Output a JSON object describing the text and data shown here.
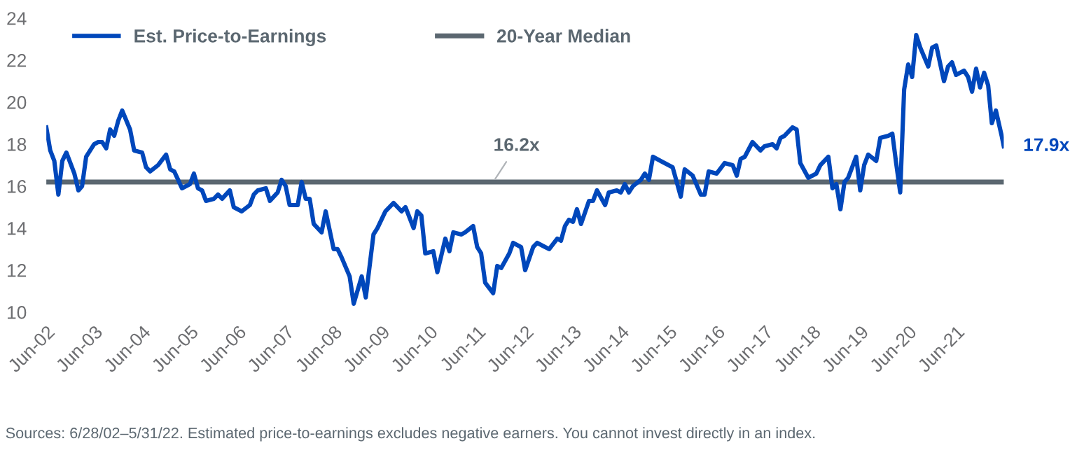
{
  "chart_data": {
    "type": "line",
    "series": [
      {
        "name": "Est. Price-to-Earnings",
        "color": "#0047bb",
        "x": [
          "2002-06",
          "2002-07",
          "2002-08",
          "2002-09",
          "2002-10",
          "2002-11",
          "2003-01",
          "2003-02",
          "2003-03",
          "2003-04",
          "2003-06",
          "2003-07",
          "2003-08",
          "2003-09",
          "2003-10",
          "2003-11",
          "2003-12",
          "2004-01",
          "2004-03",
          "2004-04",
          "2004-06",
          "2004-07",
          "2004-08",
          "2004-10",
          "2004-12",
          "2005-01",
          "2005-02",
          "2005-04",
          "2005-06",
          "2005-07",
          "2005-08",
          "2005-09",
          "2005-10",
          "2005-12",
          "2006-01",
          "2006-02",
          "2006-04",
          "2006-05",
          "2006-07",
          "2006-09",
          "2006-10",
          "2006-11",
          "2007-01",
          "2007-02",
          "2007-04",
          "2007-05",
          "2007-06",
          "2007-07",
          "2007-09",
          "2007-10",
          "2007-11",
          "2007-12",
          "2008-01",
          "2008-03",
          "2008-04",
          "2008-06",
          "2008-07",
          "2008-08",
          "2008-10",
          "2008-11",
          "2009-01",
          "2009-02",
          "2009-04",
          "2009-05",
          "2009-07",
          "2009-09",
          "2009-11",
          "2009-12",
          "2010-02",
          "2010-03",
          "2010-04",
          "2010-05",
          "2010-07",
          "2010-08",
          "2010-10",
          "2010-11",
          "2010-12",
          "2011-02",
          "2011-03",
          "2011-05",
          "2011-06",
          "2011-07",
          "2011-08",
          "2011-10",
          "2011-11",
          "2011-12",
          "2012-02",
          "2012-03",
          "2012-05",
          "2012-06",
          "2012-08",
          "2012-09",
          "2012-11",
          "2012-12",
          "2013-02",
          "2013-03",
          "2013-04",
          "2013-05",
          "2013-06",
          "2013-07",
          "2013-08",
          "2013-10",
          "2013-11",
          "2013-12",
          "2014-02",
          "2014-03",
          "2014-05",
          "2014-06",
          "2014-07",
          "2014-08",
          "2014-09",
          "2014-11",
          "2014-12",
          "2015-01",
          "2015-02",
          "2015-04",
          "2015-07",
          "2015-09",
          "2015-10",
          "2015-12",
          "2016-02",
          "2016-03",
          "2016-04",
          "2016-06",
          "2016-08",
          "2016-10",
          "2016-11",
          "2016-12",
          "2017-01",
          "2017-03",
          "2017-05",
          "2017-06",
          "2017-08",
          "2017-09",
          "2017-10",
          "2017-11",
          "2018-01",
          "2018-02",
          "2018-03",
          "2018-05",
          "2018-07",
          "2018-08",
          "2018-10",
          "2018-11",
          "2018-12",
          "2019-01",
          "2019-02",
          "2019-03",
          "2019-05",
          "2019-06",
          "2019-07",
          "2019-08",
          "2019-10",
          "2019-11",
          "2020-01",
          "2020-02",
          "2020-03",
          "2020-04",
          "2020-05",
          "2020-06",
          "2020-07",
          "2020-08",
          "2020-09",
          "2020-11",
          "2020-12",
          "2021-01",
          "2021-03",
          "2021-04",
          "2021-05",
          "2021-06",
          "2021-08",
          "2021-09",
          "2021-10",
          "2021-11",
          "2021-12",
          "2022-01",
          "2022-02",
          "2022-03",
          "2022-04",
          "2022-05-15",
          "2022-05-31"
        ],
        "values": [
          18.8,
          17.7,
          17.2,
          15.6,
          17.2,
          17.6,
          16.6,
          15.8,
          16.0,
          17.4,
          18.0,
          18.1,
          18.1,
          17.8,
          18.7,
          18.4,
          19.1,
          19.6,
          18.7,
          17.7,
          17.6,
          16.9,
          16.7,
          17.0,
          17.5,
          16.8,
          16.7,
          15.9,
          16.1,
          16.6,
          15.9,
          15.8,
          15.3,
          15.4,
          15.6,
          15.4,
          15.8,
          15.0,
          14.8,
          15.1,
          15.6,
          15.8,
          15.9,
          15.3,
          15.7,
          16.3,
          16.0,
          15.1,
          15.1,
          16.2,
          15.4,
          15.4,
          14.2,
          13.8,
          14.8,
          13.0,
          13.0,
          12.6,
          11.7,
          10.4,
          11.7,
          10.7,
          13.7,
          14.0,
          14.8,
          15.2,
          14.8,
          15.0,
          14.0,
          14.8,
          14.6,
          12.8,
          12.9,
          11.9,
          13.5,
          12.9,
          13.8,
          13.7,
          13.8,
          14.1,
          13.1,
          12.8,
          11.4,
          10.9,
          12.2,
          12.1,
          12.8,
          13.3,
          13.1,
          12.0,
          13.1,
          13.3,
          13.1,
          13.0,
          13.5,
          13.4,
          14.1,
          14.4,
          14.3,
          14.9,
          14.2,
          15.3,
          15.3,
          15.8,
          15.1,
          15.7,
          15.8,
          15.7,
          16.1,
          15.7,
          16.0,
          16.3,
          16.6,
          16.3,
          17.4,
          17.2,
          16.9,
          15.5,
          16.8,
          16.5,
          15.6,
          15.6,
          16.7,
          16.6,
          17.1,
          17.0,
          16.5,
          17.3,
          17.4,
          18.1,
          17.7,
          17.9,
          18.0,
          17.8,
          18.3,
          18.4,
          18.8,
          18.7,
          17.1,
          16.4,
          16.6,
          17.0,
          17.4,
          15.9,
          16.1,
          14.9,
          16.2,
          16.4,
          17.4,
          15.8,
          17.0,
          17.5,
          17.2,
          18.3,
          18.4,
          18.5,
          17.1,
          15.7,
          20.6,
          21.8,
          21.2,
          23.2,
          22.6,
          21.7,
          22.6,
          22.7,
          21.0,
          21.7,
          21.9,
          21.3,
          21.5,
          21.2,
          20.5,
          21.6,
          20.7,
          21.4,
          20.8,
          19.0,
          19.6,
          18.4,
          17.9
        ]
      },
      {
        "name": "20-Year Median",
        "color": "#5b6770",
        "x": [
          "2002-06",
          "2022-05-31"
        ],
        "values": [
          16.2,
          16.2
        ]
      }
    ],
    "xlim": [
      "2002-06",
      "2022-05-31"
    ],
    "xticks": [
      {
        "value": "2002-06",
        "label": "Jun-02"
      },
      {
        "value": "2003-06",
        "label": "Jun-03"
      },
      {
        "value": "2004-06",
        "label": "Jun-04"
      },
      {
        "value": "2005-06",
        "label": "Jun-05"
      },
      {
        "value": "2006-06",
        "label": "Jun-06"
      },
      {
        "value": "2007-06",
        "label": "Jun-07"
      },
      {
        "value": "2008-06",
        "label": "Jun-08"
      },
      {
        "value": "2009-06",
        "label": "Jun-09"
      },
      {
        "value": "2010-06",
        "label": "Jun-10"
      },
      {
        "value": "2011-06",
        "label": "Jun-11"
      },
      {
        "value": "2012-06",
        "label": "Jun-12"
      },
      {
        "value": "2013-06",
        "label": "Jun-13"
      },
      {
        "value": "2014-06",
        "label": "Jun-14"
      },
      {
        "value": "2015-06",
        "label": "Jun-15"
      },
      {
        "value": "2016-06",
        "label": "Jun-16"
      },
      {
        "value": "2017-06",
        "label": "Jun-17"
      },
      {
        "value": "2018-06",
        "label": "Jun-18"
      },
      {
        "value": "2019-06",
        "label": "Jun-19"
      },
      {
        "value": "2020-06",
        "label": "Jun-20"
      },
      {
        "value": "2021-06",
        "label": "Jun-21"
      }
    ],
    "ylim": [
      10,
      24
    ],
    "yticks": [
      10,
      12,
      14,
      16,
      18,
      20,
      22,
      24
    ],
    "grid": false,
    "legend": "top",
    "marker": "none",
    "line_style": "solid",
    "annotations": [
      {
        "text": "16.2x",
        "x": "2011-10",
        "y": 16.2
      },
      {
        "text": "17.9x",
        "x": "2022-05-31",
        "y": 17.9
      },
      "Sources: 6/28/02–5/31/22. Estimated price-to-earnings excludes negative earners. You cannot invest directly in an index."
    ]
  }
}
